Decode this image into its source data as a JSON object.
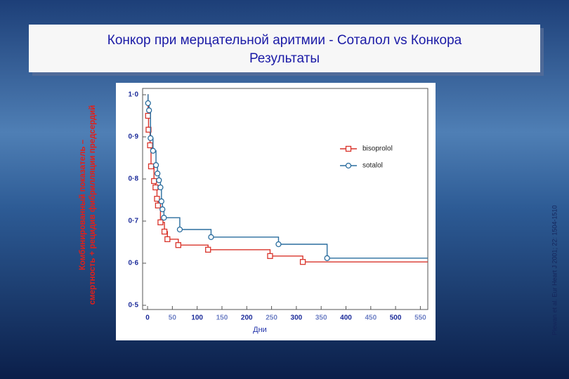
{
  "slide": {
    "title_lines": [
      "Конкор при мерцательной аритмии - Соталол vs Конкора",
      "Результаты"
    ],
    "citation": "Plewan et al. Eur Heart J 2001; 22: 1504-1510"
  },
  "chart_data": {
    "type": "step",
    "x_label": "Дни",
    "y_label_lines": [
      "Комбинированный показатель –",
      "смертность + рецидив фибрилляции предсердий"
    ],
    "xlim": [
      -10,
      565
    ],
    "xticks": [
      0,
      50,
      100,
      150,
      200,
      250,
      300,
      350,
      400,
      450,
      500,
      550
    ],
    "ylim": [
      0.49,
      1.015
    ],
    "yticks": [
      {
        "value": 0.5,
        "label": "0·5"
      },
      {
        "value": 0.6,
        "label": "0·6"
      },
      {
        "value": 0.7,
        "label": "0·7"
      },
      {
        "value": 0.8,
        "label": "0·8"
      },
      {
        "value": 0.9,
        "label": "0·9"
      },
      {
        "value": 1.0,
        "label": "1·0"
      }
    ],
    "series": [
      {
        "name": "bisoprolol",
        "color": "#d9342b",
        "marker": "square",
        "x": [
          0,
          1,
          2,
          5,
          7,
          13,
          16,
          19,
          21,
          26,
          34,
          40,
          62,
          122,
          247,
          313
        ],
        "values": [
          1.0,
          0.95,
          0.917,
          0.88,
          0.83,
          0.795,
          0.78,
          0.753,
          0.737,
          0.697,
          0.675,
          0.657,
          0.643,
          0.632,
          0.617,
          0.603
        ]
      },
      {
        "name": "sotalol",
        "color": "#2a6d9e",
        "marker": "circle",
        "x": [
          0,
          1,
          3,
          6,
          11,
          17,
          20,
          23,
          26,
          28,
          30,
          33,
          65,
          128,
          264,
          362
        ],
        "values": [
          1.0,
          0.98,
          0.963,
          0.897,
          0.867,
          0.833,
          0.813,
          0.797,
          0.78,
          0.747,
          0.728,
          0.708,
          0.68,
          0.662,
          0.645,
          0.612
        ]
      }
    ]
  }
}
